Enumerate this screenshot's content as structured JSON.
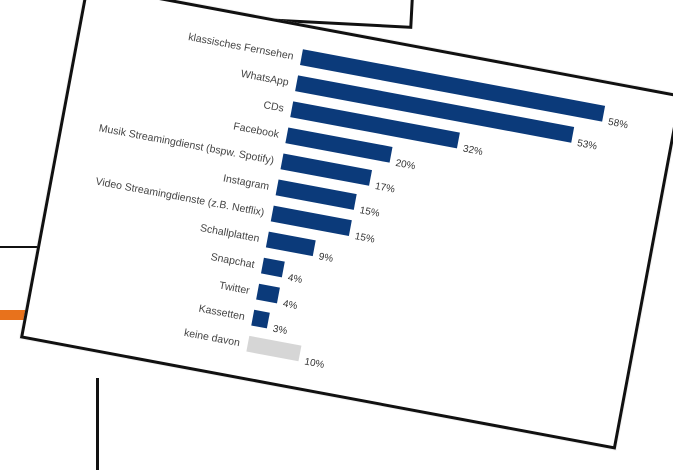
{
  "colors": {
    "bar": "#0b3a7a",
    "bar_muted": "#d6d6d6",
    "accent": "#e8721c",
    "label": "#444444"
  },
  "chart_data": {
    "type": "bar",
    "orientation": "horizontal",
    "title": "",
    "xlabel": "",
    "ylabel": "",
    "xlim": [
      0,
      60
    ],
    "grid": false,
    "legend": "none",
    "categories": [
      "klassisches Fernsehen",
      "WhatsApp",
      "CDs",
      "Facebook",
      "Musik Streamingdienst (bspw. Spotify)",
      "Instagram",
      "Video Streamingdienste (z.B. Netflix)",
      "Schallplatten",
      "Snapchat",
      "Twitter",
      "Kassetten",
      "keine davon"
    ],
    "values": [
      58,
      53,
      32,
      20,
      17,
      15,
      15,
      9,
      4,
      4,
      3,
      10
    ],
    "value_labels": [
      "58%",
      "53%",
      "32%",
      "20%",
      "17%",
      "15%",
      "15%",
      "9%",
      "4%",
      "4%",
      "3%",
      "10%"
    ],
    "highlight": [
      true,
      true,
      true,
      true,
      true,
      true,
      true,
      true,
      true,
      true,
      true,
      false
    ]
  }
}
